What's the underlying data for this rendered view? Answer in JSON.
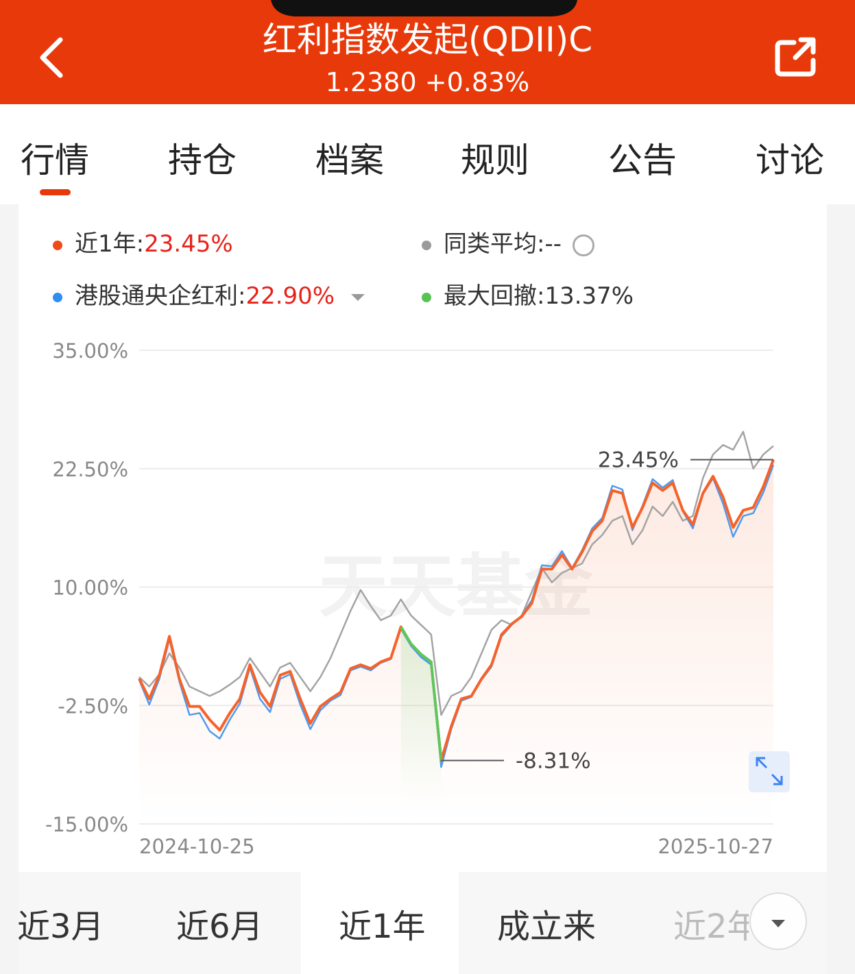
{
  "header": {
    "title": "红利指数发起(QDII)C",
    "subtitle": "1.2380 +0.83%"
  },
  "tabs": [
    "行情",
    "持仓",
    "档案",
    "规则",
    "公告",
    "讨论"
  ],
  "legend": [
    {
      "label": "近1年:",
      "value": "23.45%"
    },
    {
      "label": "同类平均:",
      "value": "--"
    },
    {
      "label": "港股通央企红利:",
      "value": "22.90%"
    },
    {
      "label": "最大回撤:",
      "value": "13.37%"
    }
  ],
  "watermark": "天天基金",
  "chart_data": {
    "type": "line",
    "categories": [
      "2024-10-25",
      null,
      null,
      null,
      null,
      null,
      null,
      null,
      null,
      null,
      null,
      null,
      null,
      null,
      null,
      null,
      null,
      null,
      null,
      null,
      null,
      null,
      null,
      null,
      null,
      null,
      null,
      null,
      null,
      null,
      null,
      null,
      null,
      null,
      null,
      null,
      null,
      null,
      null,
      null,
      null,
      null,
      null,
      null,
      null,
      null,
      null,
      null,
      null,
      null,
      null,
      null,
      null,
      null,
      null,
      null,
      null,
      null,
      null,
      null,
      null,
      null,
      null,
      "2025-10-27"
    ],
    "series": [
      {
        "color": "#a3a3a3",
        "values": [
          0.5,
          -0.5,
          0.8,
          3.0,
          1.5,
          -0.5,
          -1.0,
          -1.5,
          -1.0,
          -0.3,
          0.5,
          2.5,
          1.0,
          -0.5,
          1.5,
          2.0,
          0.5,
          -1.0,
          0.5,
          2.5,
          5.0,
          7.5,
          9.7,
          8.0,
          6.5,
          7.0,
          8.7,
          7.0,
          6.0,
          5.0,
          -3.5,
          -1.5,
          -1.0,
          0.5,
          3.0,
          5.5,
          6.5,
          6.0,
          7.0,
          9.5,
          12.0,
          10.5,
          11.5,
          12.0,
          12.5,
          14.5,
          15.5,
          17.0,
          17.5,
          14.5,
          16.0,
          18.5,
          17.5,
          19.0,
          17.0,
          17.5,
          21.5,
          24.0,
          25.0,
          24.5,
          26.4,
          22.5,
          24.0,
          24.9
        ]
      },
      {
        "color": "#4e9bf0",
        "values": [
          0.2,
          -2.4,
          0.3,
          4.5,
          0.0,
          -3.5,
          -3.3,
          -5.2,
          -6.0,
          -4.0,
          -2.3,
          1.5,
          -1.8,
          -3.2,
          0.3,
          0.8,
          -2.4,
          -5.0,
          -3.0,
          -2.0,
          -1.4,
          1.2,
          1.6,
          1.2,
          2.0,
          2.4,
          5.6,
          3.8,
          2.6,
          1.8,
          -9.0,
          -5.0,
          -2.0,
          -1.6,
          0.2,
          1.6,
          4.8,
          6.0,
          7.0,
          8.6,
          12.3,
          12.2,
          13.8,
          12.0,
          13.9,
          16.2,
          17.3,
          20.7,
          20.3,
          16.0,
          18.6,
          21.4,
          20.5,
          21.3,
          18.0,
          16.2,
          19.8,
          21.5,
          18.8,
          15.3,
          17.5,
          17.8,
          20.0,
          22.9
        ]
      },
      {
        "color": "#f5622a",
        "values": [
          0.34,
          -1.8,
          0.7,
          4.8,
          0.3,
          -2.6,
          -2.6,
          -4.0,
          -5.1,
          -3.3,
          -1.8,
          1.8,
          -1.1,
          -2.6,
          0.7,
          1.1,
          -1.8,
          -4.4,
          -2.6,
          -1.8,
          -1.1,
          1.4,
          1.8,
          1.4,
          2.1,
          2.5,
          5.8,
          4.0,
          2.9,
          2.1,
          -8.31,
          -4.7,
          -1.8,
          -1.5,
          0.3,
          1.8,
          5.0,
          6.1,
          6.9,
          8.3,
          11.9,
          11.9,
          13.4,
          11.9,
          13.7,
          15.9,
          17.0,
          20.2,
          19.9,
          16.3,
          18.4,
          21.0,
          20.2,
          21.0,
          18.1,
          16.6,
          19.9,
          21.7,
          19.5,
          16.3,
          18.1,
          18.4,
          20.6,
          23.45
        ]
      }
    ],
    "drawdown_color": "#5cc85c",
    "annotations": [
      {
        "text": "23.45%",
        "value": 23.45
      },
      {
        "text": "-8.31%",
        "value": -8.31
      }
    ],
    "ylim": [
      -15,
      35
    ],
    "yticks": [
      {
        "value": 35,
        "label": "35.00%"
      },
      {
        "value": 22.5,
        "label": "22.50%"
      },
      {
        "value": 10,
        "label": "10.00%"
      },
      {
        "value": -2.5,
        "label": "-2.50%"
      },
      {
        "value": -15,
        "label": "-15.00%"
      }
    ],
    "grid": true
  },
  "range_tabs": [
    "近3月",
    "近6月",
    "近1年",
    "成立来",
    "近2年"
  ]
}
